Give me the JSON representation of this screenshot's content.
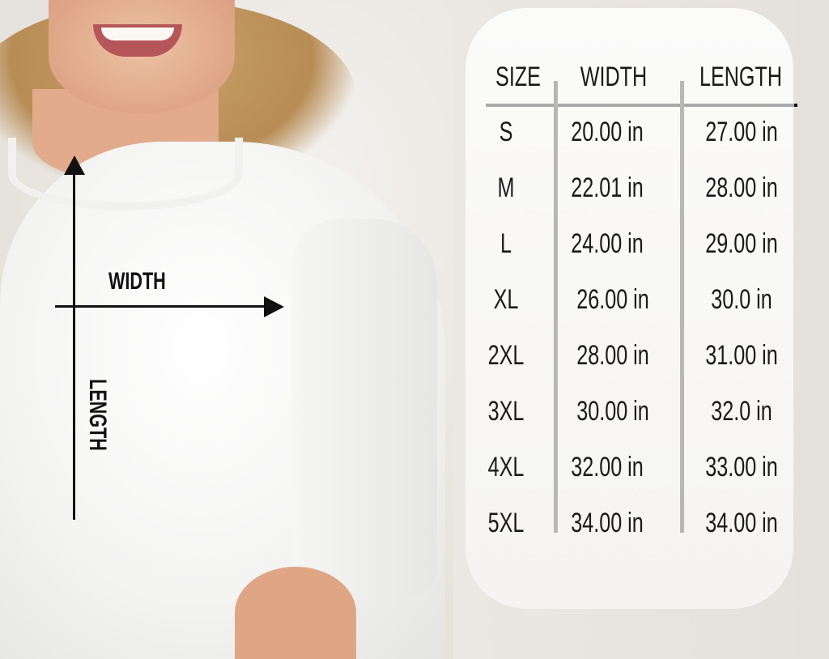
{
  "diagram": {
    "width_label": "WIDTH",
    "length_label": "LENGTH"
  },
  "size_chart": {
    "headers": [
      "SIZE",
      "WIDTH",
      "LENGTH"
    ],
    "rows": [
      [
        "S",
        "20.00 in",
        "27.00 in"
      ],
      [
        "M",
        "22.01 in",
        "28.00 in"
      ],
      [
        "L",
        "24.00 in",
        "29.00 in"
      ],
      [
        "XL",
        "26.00 in",
        "30.0 in"
      ],
      [
        "2XL",
        "28.00 in",
        "31.00 in"
      ],
      [
        "3XL",
        "30.00 in",
        "32.0 in"
      ],
      [
        "4XL",
        "32.00 in",
        "33.00 in"
      ],
      [
        "5XL",
        "34.00 in",
        "34.00 in"
      ]
    ]
  },
  "colors": {
    "text": "#1a1a1a",
    "divider": "#b7b7b7",
    "panel": "#f8f8f7"
  }
}
